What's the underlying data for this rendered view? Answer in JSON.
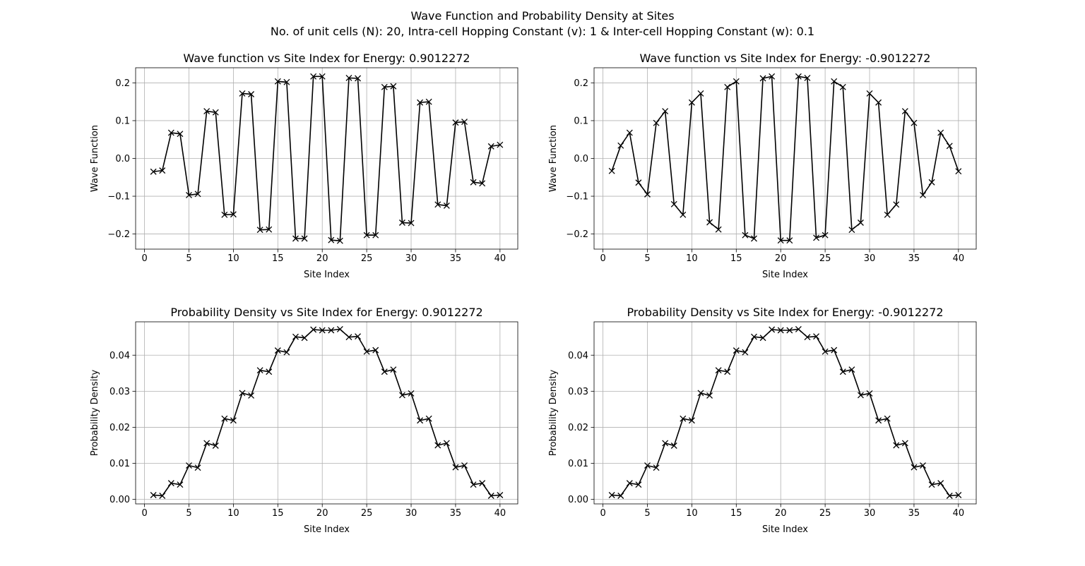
{
  "figure": {
    "title": "Wave Function and Probability Density at Sites",
    "subtitle": "No. of unit cells (N): 20, Intra-cell Hopping Constant (v): 1 & Inter-cell Hopping Constant (w): 0.1"
  },
  "chart_data": [
    {
      "type": "line",
      "title": "Wave function vs Site Index for Energy: 0.9012272",
      "xlabel": "Site Index",
      "ylabel": "Wave Function",
      "xlim": [
        -1,
        42
      ],
      "ylim": [
        -0.24,
        0.24
      ],
      "xticks": [
        0,
        5,
        10,
        15,
        20,
        25,
        30,
        35,
        40
      ],
      "yticks": [
        -0.2,
        -0.1,
        0.0,
        0.1,
        0.2
      ],
      "ytick_labels": [
        "−0.2",
        "−0.1",
        "0.0",
        "0.1",
        "0.2"
      ],
      "grid": true,
      "color": "#000000",
      "marker": "x",
      "x": [
        1,
        2,
        3,
        4,
        5,
        6,
        7,
        8,
        9,
        10,
        11,
        12,
        13,
        14,
        15,
        16,
        17,
        18,
        19,
        20,
        21,
        22,
        23,
        24,
        25,
        26,
        27,
        28,
        29,
        30,
        31,
        32,
        33,
        34,
        35,
        36,
        37,
        38,
        39,
        40
      ],
      "y": [
        -0.035,
        -0.032,
        0.068,
        0.065,
        -0.097,
        -0.094,
        0.125,
        0.122,
        -0.149,
        -0.148,
        0.172,
        0.17,
        -0.189,
        -0.188,
        0.204,
        0.202,
        -0.212,
        -0.212,
        0.217,
        0.217,
        -0.216,
        -0.218,
        0.213,
        0.212,
        -0.203,
        -0.203,
        0.189,
        0.191,
        -0.17,
        -0.171,
        0.148,
        0.15,
        -0.122,
        -0.125,
        0.095,
        0.097,
        -0.063,
        -0.066,
        0.032,
        0.036
      ]
    },
    {
      "type": "line",
      "title": "Wave function vs Site Index for Energy: -0.9012272",
      "xlabel": "Site Index",
      "ylabel": "Wave Function",
      "xlim": [
        -1,
        42
      ],
      "ylim": [
        -0.24,
        0.24
      ],
      "xticks": [
        0,
        5,
        10,
        15,
        20,
        25,
        30,
        35,
        40
      ],
      "yticks": [
        -0.2,
        -0.1,
        0.0,
        0.1,
        0.2
      ],
      "ytick_labels": [
        "−0.2",
        "−0.1",
        "0.0",
        "0.1",
        "0.2"
      ],
      "grid": true,
      "color": "#000000",
      "marker": "x",
      "x": [
        1,
        2,
        3,
        4,
        5,
        6,
        7,
        8,
        9,
        10,
        11,
        12,
        13,
        14,
        15,
        16,
        17,
        18,
        19,
        20,
        21,
        22,
        23,
        24,
        25,
        26,
        27,
        28,
        29,
        30,
        31,
        32,
        33,
        34,
        35,
        36,
        37,
        38,
        39,
        40
      ],
      "y": [
        -0.033,
        0.034,
        0.068,
        -0.064,
        -0.095,
        0.094,
        0.125,
        -0.121,
        -0.149,
        0.148,
        0.172,
        -0.169,
        -0.188,
        0.189,
        0.204,
        -0.203,
        -0.212,
        0.212,
        0.217,
        -0.217,
        -0.217,
        0.217,
        0.213,
        -0.21,
        -0.203,
        0.204,
        0.189,
        -0.189,
        -0.17,
        0.172,
        0.148,
        -0.149,
        -0.122,
        0.125,
        0.094,
        -0.097,
        -0.063,
        0.068,
        0.033,
        -0.034
      ]
    },
    {
      "type": "line",
      "title": "Probability Density vs Site Index for Energy: 0.9012272",
      "xlabel": "Site Index",
      "ylabel": "Probability Density",
      "xlim": [
        -1,
        42
      ],
      "ylim": [
        -0.00125,
        0.04925
      ],
      "xticks": [
        0,
        5,
        10,
        15,
        20,
        25,
        30,
        35,
        40
      ],
      "yticks": [
        0.0,
        0.01,
        0.02,
        0.03,
        0.04
      ],
      "ytick_labels": [
        "0.00",
        "0.01",
        "0.02",
        "0.03",
        "0.04"
      ],
      "grid": true,
      "color": "#000000",
      "marker": "x",
      "x": [
        1,
        2,
        3,
        4,
        5,
        6,
        7,
        8,
        9,
        10,
        11,
        12,
        13,
        14,
        15,
        16,
        17,
        18,
        19,
        20,
        21,
        22,
        23,
        24,
        25,
        26,
        27,
        28,
        29,
        30,
        31,
        32,
        33,
        34,
        35,
        36,
        37,
        38,
        39,
        40
      ],
      "y": [
        0.0012,
        0.001,
        0.0045,
        0.0041,
        0.0094,
        0.0088,
        0.0156,
        0.0149,
        0.0224,
        0.0219,
        0.0295,
        0.0288,
        0.0358,
        0.0354,
        0.0413,
        0.0408,
        0.0451,
        0.0448,
        0.0471,
        0.0469,
        0.0469,
        0.0472,
        0.045,
        0.0452,
        0.041,
        0.0414,
        0.0354,
        0.036,
        0.0289,
        0.0294,
        0.0219,
        0.0224,
        0.015,
        0.0156,
        0.0089,
        0.0094,
        0.0041,
        0.0045,
        0.001,
        0.0012
      ]
    },
    {
      "type": "line",
      "title": "Probability Density vs Site Index for Energy: -0.9012272",
      "xlabel": "Site Index",
      "ylabel": "Probability Density",
      "xlim": [
        -1,
        42
      ],
      "ylim": [
        -0.00125,
        0.04925
      ],
      "xticks": [
        0,
        5,
        10,
        15,
        20,
        25,
        30,
        35,
        40
      ],
      "yticks": [
        0.0,
        0.01,
        0.02,
        0.03,
        0.04
      ],
      "ytick_labels": [
        "0.00",
        "0.01",
        "0.02",
        "0.03",
        "0.04"
      ],
      "grid": true,
      "color": "#000000",
      "marker": "x",
      "x": [
        1,
        2,
        3,
        4,
        5,
        6,
        7,
        8,
        9,
        10,
        11,
        12,
        13,
        14,
        15,
        16,
        17,
        18,
        19,
        20,
        21,
        22,
        23,
        24,
        25,
        26,
        27,
        28,
        29,
        30,
        31,
        32,
        33,
        34,
        35,
        36,
        37,
        38,
        39,
        40
      ],
      "y": [
        0.0012,
        0.001,
        0.0045,
        0.0041,
        0.0094,
        0.0088,
        0.0156,
        0.0149,
        0.0224,
        0.0219,
        0.0295,
        0.0288,
        0.0358,
        0.0354,
        0.0413,
        0.0408,
        0.0451,
        0.0448,
        0.0471,
        0.0469,
        0.0469,
        0.0472,
        0.045,
        0.0452,
        0.041,
        0.0414,
        0.0354,
        0.036,
        0.0289,
        0.0294,
        0.0219,
        0.0224,
        0.015,
        0.0156,
        0.0089,
        0.0094,
        0.0041,
        0.0045,
        0.001,
        0.0012
      ]
    }
  ]
}
